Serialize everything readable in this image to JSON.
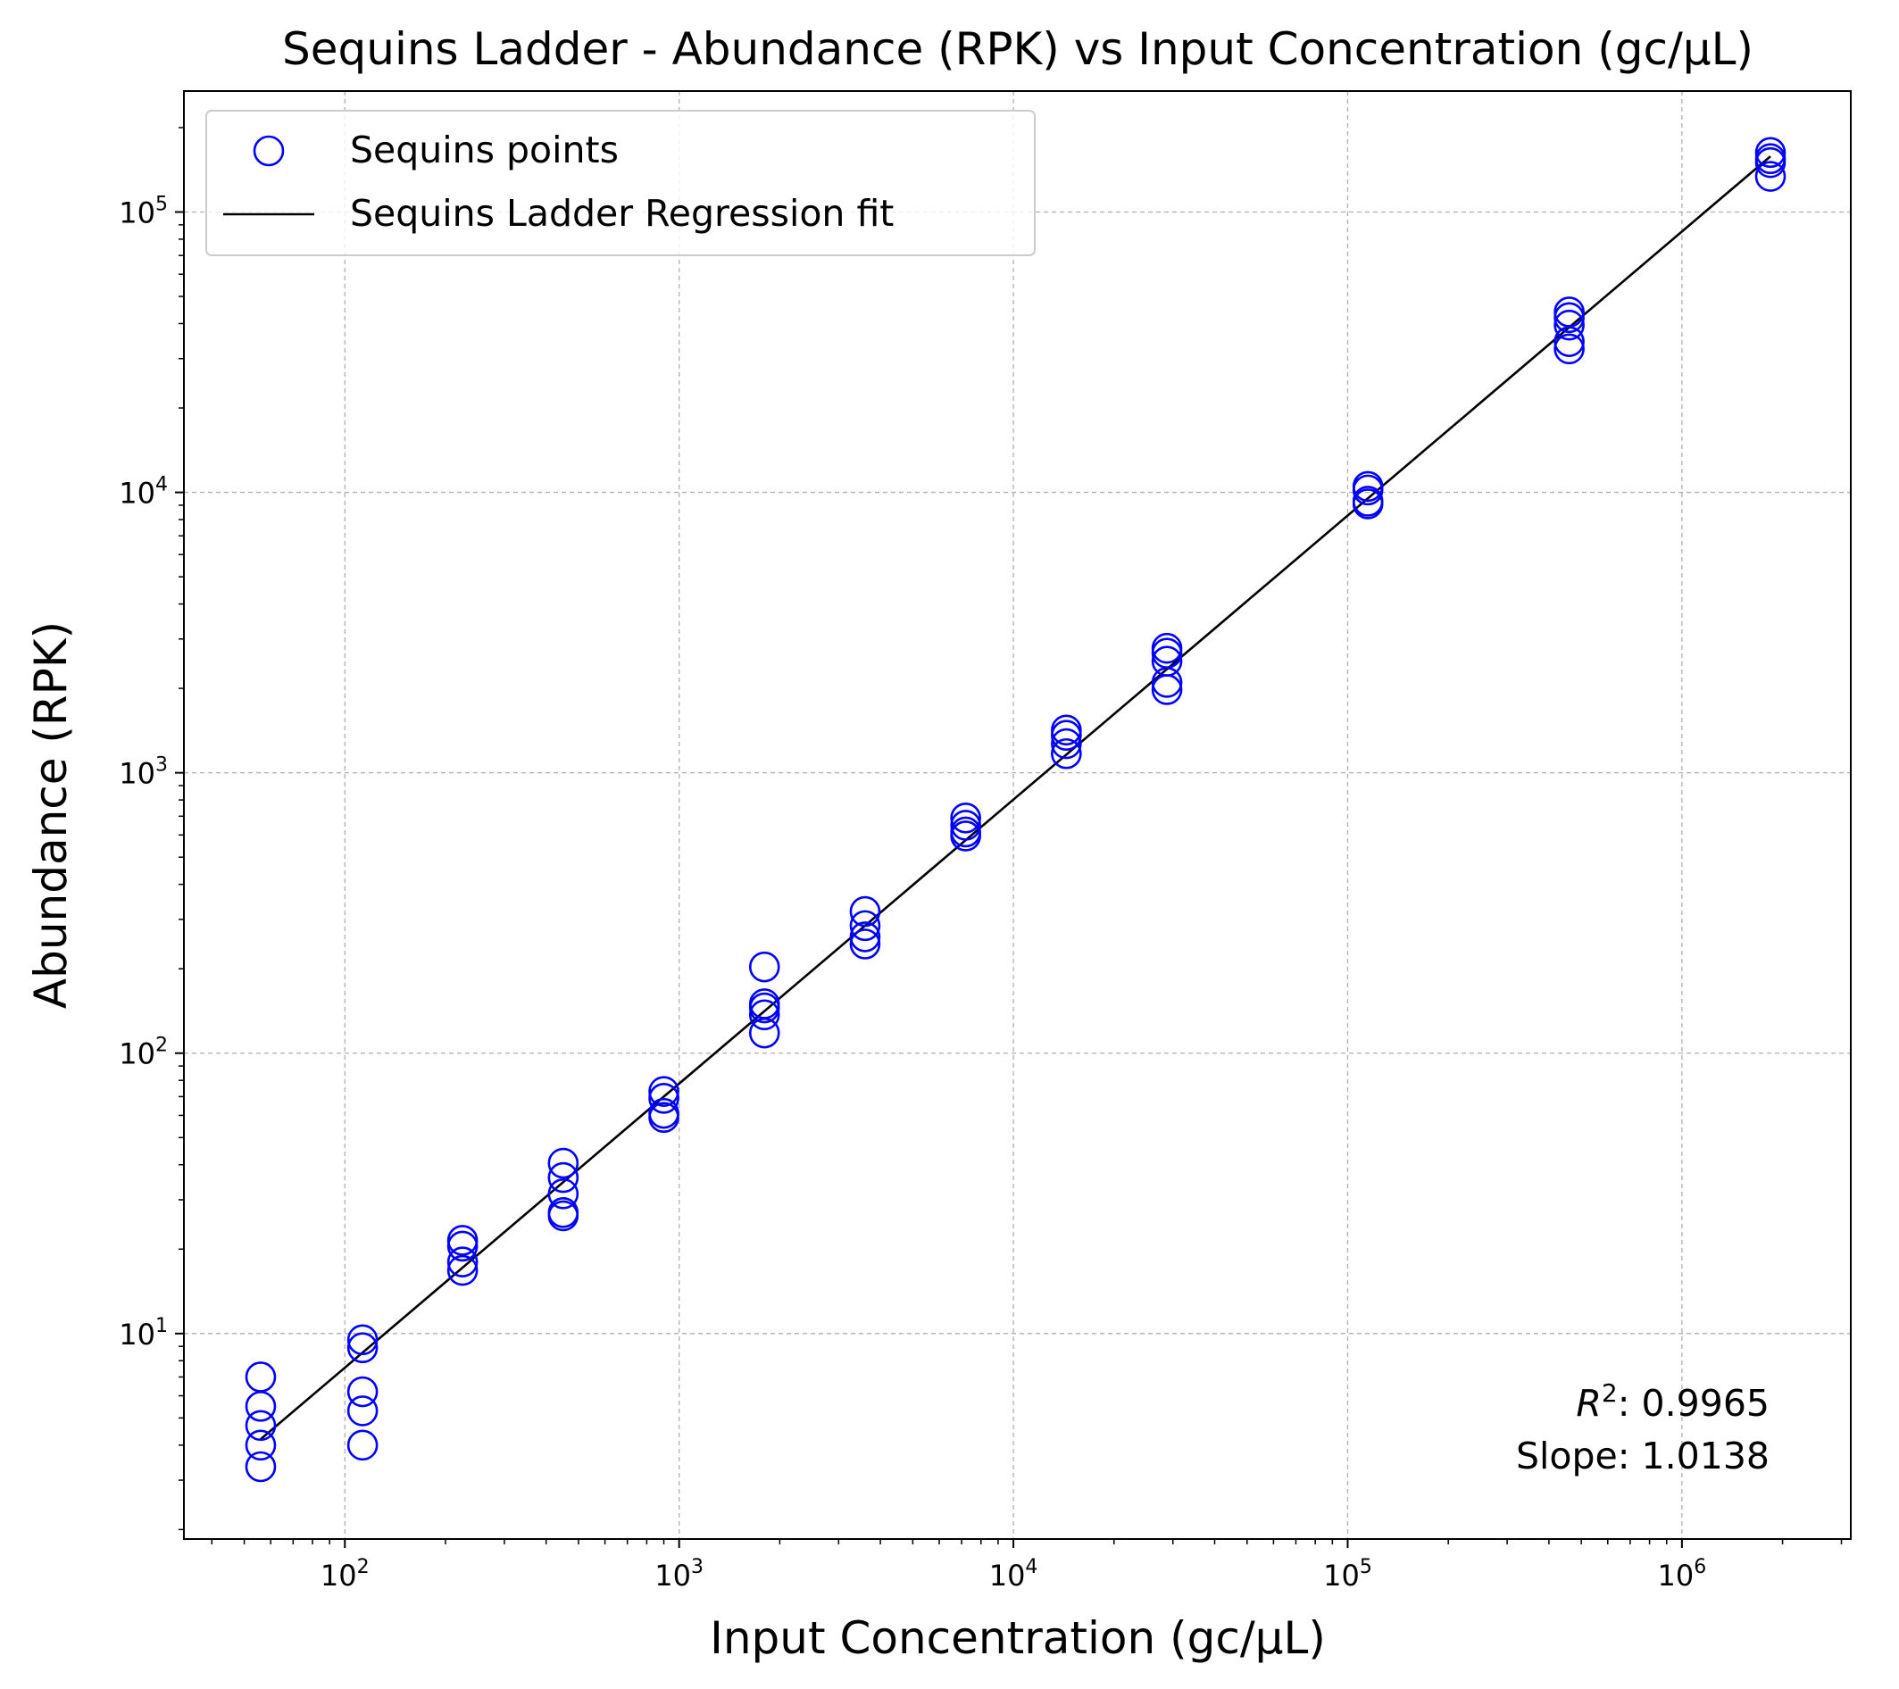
{
  "chart_data": {
    "type": "scatter",
    "title": "Sequins Ladder - Abundance (RPK) vs Input Concentration (gc/µL)",
    "xlabel": "Input Concentration (gc/µL)",
    "ylabel": "Abundance (RPK)",
    "xscale": "log",
    "yscale": "log",
    "xlim": [
      33,
      3200000
    ],
    "ylim": [
      1.85,
      270000
    ],
    "x_ticks": [
      {
        "value": 100,
        "base": "10",
        "exp": "2"
      },
      {
        "value": 1000,
        "base": "10",
        "exp": "3"
      },
      {
        "value": 10000,
        "base": "10",
        "exp": "4"
      },
      {
        "value": 100000,
        "base": "10",
        "exp": "5"
      },
      {
        "value": 1000000,
        "base": "10",
        "exp": "6"
      }
    ],
    "y_ticks": [
      {
        "value": 10,
        "base": "10",
        "exp": "1"
      },
      {
        "value": 100,
        "base": "10",
        "exp": "2"
      },
      {
        "value": 1000,
        "base": "10",
        "exp": "3"
      },
      {
        "value": 10000,
        "base": "10",
        "exp": "4"
      },
      {
        "value": 100000,
        "base": "10",
        "exp": "5"
      }
    ],
    "grid": true,
    "legend_position": "top-left",
    "series": [
      {
        "name": "Sequins points",
        "kind": "scatter",
        "marker": "open-circle",
        "color": "#0000ff",
        "points": [
          [
            56,
            7.0
          ],
          [
            56,
            5.5
          ],
          [
            56,
            4.7
          ],
          [
            56,
            4.0
          ],
          [
            56,
            3.35
          ],
          [
            113,
            9.5
          ],
          [
            113,
            8.9
          ],
          [
            113,
            6.2
          ],
          [
            113,
            5.3
          ],
          [
            113,
            4.0
          ],
          [
            225,
            21.5
          ],
          [
            225,
            20.5
          ],
          [
            225,
            18.0
          ],
          [
            225,
            16.8
          ],
          [
            450,
            40.5
          ],
          [
            450,
            36.0
          ],
          [
            450,
            31.5
          ],
          [
            450,
            27.0
          ],
          [
            450,
            26.3
          ],
          [
            900,
            73.0
          ],
          [
            900,
            69.0
          ],
          [
            900,
            61.0
          ],
          [
            900,
            59.0
          ],
          [
            1800,
            203
          ],
          [
            1800,
            150
          ],
          [
            1800,
            145
          ],
          [
            1800,
            137
          ],
          [
            1800,
            118
          ],
          [
            3600,
            320
          ],
          [
            3600,
            285
          ],
          [
            3600,
            260
          ],
          [
            3600,
            245
          ],
          [
            7200,
            690
          ],
          [
            7200,
            650
          ],
          [
            7200,
            615
          ],
          [
            7200,
            595
          ],
          [
            14400,
            1420
          ],
          [
            14400,
            1360
          ],
          [
            14400,
            1270
          ],
          [
            14400,
            1170
          ],
          [
            28800,
            2780
          ],
          [
            28800,
            2670
          ],
          [
            28800,
            2500
          ],
          [
            28800,
            2100
          ],
          [
            28800,
            1980
          ],
          [
            115000,
            10500
          ],
          [
            115000,
            10200
          ],
          [
            115000,
            9300
          ],
          [
            115000,
            9100
          ],
          [
            460000,
            44000
          ],
          [
            460000,
            42000
          ],
          [
            460000,
            39500
          ],
          [
            460000,
            34500
          ],
          [
            460000,
            32500
          ],
          [
            1840000,
            163000
          ],
          [
            1840000,
            155000
          ],
          [
            1840000,
            150000
          ],
          [
            1840000,
            134000
          ]
        ]
      },
      {
        "name": "Sequins Ladder Regression fit",
        "kind": "line",
        "color": "#000000",
        "points": [
          [
            56,
            4.2
          ],
          [
            1840000,
            158000
          ]
        ]
      }
    ],
    "annotations": {
      "r2_label_base": "R",
      "r2_label_exp": "2",
      "r2_value": ": 0.9965",
      "slope": "Slope: 1.0138"
    }
  }
}
